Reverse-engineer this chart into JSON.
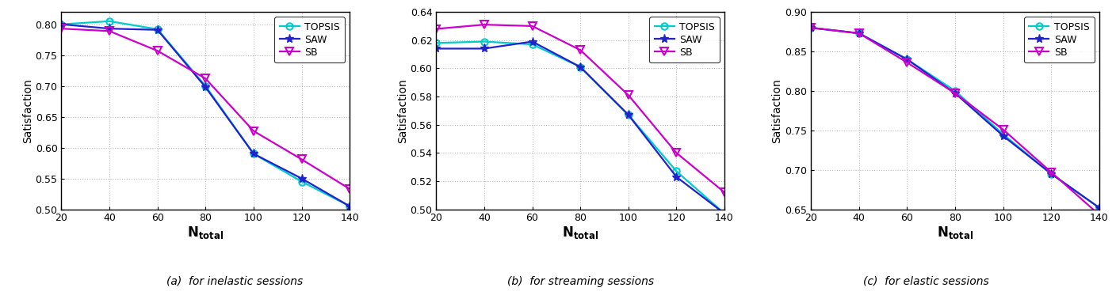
{
  "x": [
    20,
    40,
    60,
    80,
    100,
    120,
    140
  ],
  "panels": [
    {
      "title": "(a)  for inelastic sessions",
      "ylim": [
        0.5,
        0.82
      ],
      "yticks": [
        0.5,
        0.55,
        0.6,
        0.65,
        0.7,
        0.75,
        0.8
      ],
      "topsis": [
        0.8,
        0.805,
        0.792,
        0.7,
        0.59,
        0.545,
        0.505
      ],
      "saw": [
        0.8,
        0.793,
        0.791,
        0.698,
        0.59,
        0.55,
        0.505
      ],
      "sb": [
        0.793,
        0.789,
        0.757,
        0.712,
        0.627,
        0.581,
        0.533
      ]
    },
    {
      "title": "(b)  for streaming sessions",
      "ylim": [
        0.5,
        0.64
      ],
      "yticks": [
        0.5,
        0.52,
        0.54,
        0.56,
        0.58,
        0.6,
        0.62,
        0.64
      ],
      "topsis": [
        0.618,
        0.619,
        0.617,
        0.601,
        0.567,
        0.527,
        0.497
      ],
      "saw": [
        0.614,
        0.614,
        0.619,
        0.601,
        0.567,
        0.523,
        0.497
      ],
      "sb": [
        0.628,
        0.631,
        0.63,
        0.613,
        0.581,
        0.54,
        0.512
      ]
    },
    {
      "title": "(c)  for elastic sessions",
      "ylim": [
        0.65,
        0.9
      ],
      "yticks": [
        0.65,
        0.7,
        0.75,
        0.8,
        0.85,
        0.9
      ],
      "topsis": [
        0.88,
        0.873,
        0.84,
        0.8,
        0.745,
        0.695,
        0.652
      ],
      "saw": [
        0.88,
        0.873,
        0.84,
        0.797,
        0.743,
        0.695,
        0.652
      ],
      "sb": [
        0.88,
        0.873,
        0.836,
        0.797,
        0.751,
        0.697,
        0.643
      ]
    }
  ],
  "topsis_color": "#00CCCC",
  "saw_color": "#2222CC",
  "sb_color": "#CC00CC",
  "xlabel": "$\\mathbf{N}_{\\mathbf{total}}$",
  "ylabel": "Satisfaction",
  "bg_color": "#FFFFFF",
  "grid_color": "#BBBBBB"
}
